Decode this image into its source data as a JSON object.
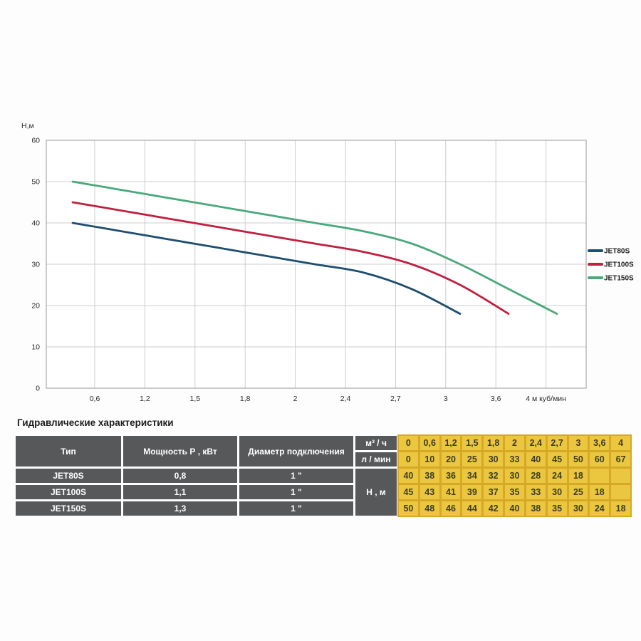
{
  "section_title": "Гидравлические характеристики",
  "colors": {
    "dark_cell": "#57585a",
    "yellow_cell": "#eac73f",
    "amber_gap": "#d7a827",
    "yellow_text": "#3f3d20",
    "grid_line": "#cccccc",
    "plot_border": "#b0b0b0",
    "axis_text": "#2a2a2a",
    "plot_bg": "#ffffff"
  },
  "chart_data": {
    "type": "line",
    "title": "",
    "ylabel": "Н,м",
    "xlabel": "м куб/мин",
    "categories": [
      0,
      0.6,
      1.2,
      1.5,
      1.8,
      2,
      2.4,
      2.7,
      3,
      3.6,
      4
    ],
    "x_tick_labels": [
      "0,6",
      "1,2",
      "1,5",
      "1,8",
      "2",
      "2,4",
      "2,7",
      "3",
      "3,6",
      "4 м куб/мин"
    ],
    "y_ticks": [
      0,
      10,
      20,
      30,
      40,
      50,
      60
    ],
    "ylim": [
      0,
      60
    ],
    "grid": true,
    "legend_position": "right-outside",
    "series": [
      {
        "name": "JET80S",
        "color": "#1d4d6f",
        "values": [
          40,
          38,
          36,
          34,
          32,
          30,
          28,
          24,
          18,
          null,
          null
        ]
      },
      {
        "name": "JET100S",
        "color": "#c0203f",
        "values": [
          45,
          43,
          41,
          39,
          37,
          35,
          33,
          30,
          25,
          18,
          null
        ]
      },
      {
        "name": "JET150S",
        "color": "#4aa87c",
        "values": [
          50,
          48,
          46,
          44,
          42,
          40,
          38,
          35,
          30,
          24,
          18
        ]
      }
    ]
  },
  "table": {
    "left_headers": [
      "Тип",
      "Мощность Р , кВт",
      "Диаметр подключения"
    ],
    "flow_rows": [
      {
        "label": "м³ / ч",
        "values": [
          "0",
          "0,6",
          "1,2",
          "1,5",
          "1,8",
          "2",
          "2,4",
          "2,7",
          "3",
          "3,6",
          "4"
        ]
      },
      {
        "label": "л / мин",
        "values": [
          "0",
          "10",
          "20",
          "25",
          "30",
          "33",
          "40",
          "45",
          "50",
          "60",
          "67"
        ]
      }
    ],
    "h_label": "Н , м",
    "rows": [
      {
        "type": "JET80S",
        "power": "0,8",
        "diameter": "1 \"",
        "h_values": [
          "40",
          "38",
          "36",
          "34",
          "32",
          "30",
          "28",
          "24",
          "18",
          "",
          ""
        ]
      },
      {
        "type": "JET100S",
        "power": "1,1",
        "diameter": "1 \"",
        "h_values": [
          "45",
          "43",
          "41",
          "39",
          "37",
          "35",
          "33",
          "30",
          "25",
          "18",
          ""
        ]
      },
      {
        "type": "JET150S",
        "power": "1,3",
        "diameter": "1 \"",
        "h_values": [
          "50",
          "48",
          "46",
          "44",
          "42",
          "40",
          "38",
          "35",
          "30",
          "24",
          "18"
        ]
      }
    ]
  }
}
